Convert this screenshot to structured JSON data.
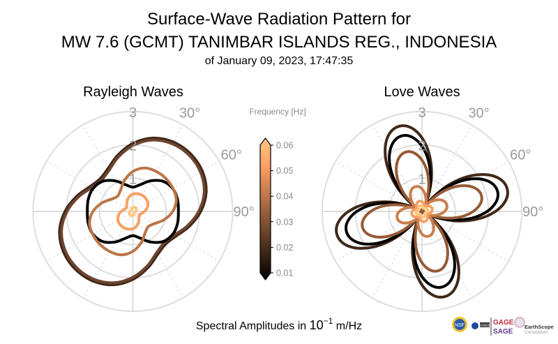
{
  "title": {
    "line1": "Surface-Wave Radiation Pattern for",
    "line2": "MW 7.6 (GCMT) TANIMBAR ISLANDS REG., INDONESIA",
    "line3": "of January 09, 2023, 17:47:35"
  },
  "footer": {
    "amplitude_label_prefix": "Spectral Amplitudes in ",
    "amplitude_label_base": "10",
    "amplitude_label_exp": "−1",
    "amplitude_label_unit": " m/Hz"
  },
  "logos": {
    "gage": "GAGE",
    "sage": "SAGE",
    "earthscope": "EarthScope",
    "consortium": "Consortium",
    "nsf": "NSF",
    "usgs": "USGS"
  },
  "chart_data": [
    {
      "type": "polar-line",
      "title": "Rayleigh Waves",
      "theta_direction": "clockwise",
      "theta_zero": "north",
      "rlim": [
        0,
        3
      ],
      "radial_ticks": [
        "1",
        "2",
        "3"
      ],
      "angle_tick_labels": [
        "30°",
        "60°",
        "90°"
      ],
      "grid": true,
      "azimuth_deg": [
        0,
        15,
        30,
        45,
        60,
        75,
        90,
        105,
        120,
        135,
        150,
        165,
        180,
        195,
        210,
        225,
        240,
        255,
        270,
        285,
        300,
        315,
        330,
        345
      ],
      "series": [
        {
          "frequency_hz": 0.02,
          "color": "#402819",
          "r": [
            2.04,
            2.28,
            2.41,
            2.45,
            2.41,
            2.28,
            2.04,
            1.75,
            1.49,
            1.39,
            1.49,
            1.75,
            2.04,
            2.28,
            2.41,
            2.45,
            2.41,
            2.28,
            2.04,
            1.75,
            1.49,
            1.39,
            1.49,
            1.75
          ]
        },
        {
          "frequency_hz": 0.03,
          "color": "#6e4530",
          "r": [
            1.98,
            2.22,
            2.35,
            2.39,
            2.35,
            2.22,
            1.98,
            1.69,
            1.43,
            1.33,
            1.43,
            1.69,
            1.98,
            2.22,
            2.35,
            2.39,
            2.35,
            2.22,
            1.98,
            1.69,
            1.43,
            1.33,
            1.43,
            1.69
          ]
        },
        {
          "frequency_hz": 0.01,
          "color": "#000000",
          "r": [
            0.73,
            0.83,
            1.06,
            1.28,
            1.38,
            1.39,
            1.37,
            1.39,
            1.38,
            1.28,
            1.06,
            0.83,
            0.73,
            0.83,
            1.06,
            1.28,
            1.38,
            1.39,
            1.37,
            1.39,
            1.38,
            1.28,
            1.06,
            0.83
          ]
        },
        {
          "frequency_hz": 0.04,
          "color": "#bb7548",
          "r": [
            1.2,
            1.35,
            1.39,
            1.4,
            1.39,
            1.35,
            1.2,
            0.97,
            0.74,
            0.65,
            0.74,
            0.97,
            1.2,
            1.35,
            1.39,
            1.4,
            1.39,
            1.35,
            1.2,
            0.97,
            0.74,
            0.65,
            0.74,
            0.97
          ]
        },
        {
          "frequency_hz": 0.05,
          "color": "#f7a066",
          "r": [
            0.52,
            0.55,
            0.56,
            0.55,
            0.52,
            0.45,
            0.35,
            0.26,
            0.22,
            0.26,
            0.35,
            0.45,
            0.52,
            0.55,
            0.56,
            0.55,
            0.52,
            0.45,
            0.35,
            0.26,
            0.22,
            0.26,
            0.35,
            0.45
          ]
        },
        {
          "frequency_hz": 0.06,
          "color": "#ffc77f",
          "r": [
            0.12,
            0.135,
            0.14,
            0.135,
            0.12,
            0.1,
            0.08,
            0.065,
            0.06,
            0.065,
            0.08,
            0.1,
            0.12,
            0.135,
            0.14,
            0.135,
            0.12,
            0.1,
            0.08,
            0.065,
            0.06,
            0.065,
            0.08,
            0.1
          ]
        }
      ]
    },
    {
      "type": "polar-line",
      "title": "Love Waves",
      "theta_direction": "clockwise",
      "theta_zero": "north",
      "rlim": [
        0,
        3
      ],
      "radial_ticks": [
        "1",
        "2",
        "3"
      ],
      "angle_tick_labels": [
        "30°",
        "60°",
        "90°"
      ],
      "grid": true,
      "azimuth_step_deg": 7.5,
      "azimuth_period_deg": 90,
      "series": [
        {
          "frequency_hz": 0.02,
          "color": "#402819",
          "r_one_period": [
            2.21,
            1.71,
            1.11,
            0.5,
            0.05,
            0.5,
            1.11,
            1.71,
            2.21,
            2.54,
            2.65,
            2.54
          ]
        },
        {
          "frequency_hz": 0.01,
          "color": "#000000",
          "r_one_period": [
            1.96,
            1.52,
            0.98,
            0.45,
            0.05,
            0.45,
            0.98,
            1.52,
            1.96,
            2.25,
            2.35,
            2.25
          ]
        },
        {
          "frequency_hz": 0.03,
          "color": "#955a36",
          "r_one_period": [
            1.54,
            1.2,
            0.78,
            0.36,
            0.05,
            0.36,
            0.78,
            1.2,
            1.54,
            1.77,
            1.85,
            1.77
          ]
        },
        {
          "frequency_hz": 0.04,
          "color": "#c97f4c",
          "r_one_period": [
            0.68,
            0.57,
            0.44,
            0.32,
            0.22,
            0.32,
            0.44,
            0.57,
            0.68,
            0.75,
            0.77,
            0.75
          ]
        },
        {
          "frequency_hz": 0.05,
          "color": "#f7a066",
          "r_one_period": [
            0.29,
            0.27,
            0.23,
            0.2,
            0.17,
            0.2,
            0.23,
            0.27,
            0.29,
            0.31,
            0.32,
            0.31
          ]
        },
        {
          "frequency_hz": 0.06,
          "color": "#ffc77f",
          "r_one_period": [
            0.17,
            0.15,
            0.13,
            0.11,
            0.1,
            0.11,
            0.13,
            0.15,
            0.17,
            0.18,
            0.18,
            0.18
          ]
        }
      ]
    },
    {
      "type": "colorbar",
      "label": "Frequency [Hz]",
      "colormap": "copper",
      "range": [
        0.01,
        0.06
      ],
      "extend": "both",
      "ticks": [
        "0.01",
        "0.02",
        "0.03",
        "0.04",
        "0.05",
        "0.06"
      ]
    }
  ]
}
